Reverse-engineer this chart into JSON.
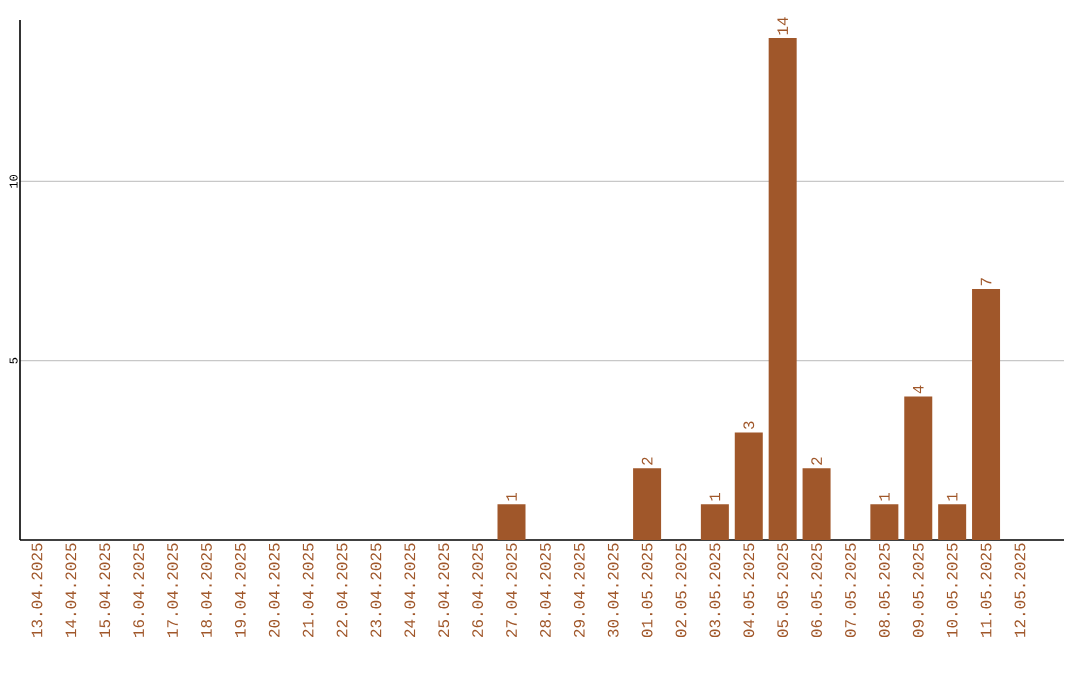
{
  "chart_data": {
    "type": "bar",
    "categories": [
      "13.04.2025",
      "14.04.2025",
      "15.04.2025",
      "16.04.2025",
      "17.04.2025",
      "18.04.2025",
      "19.04.2025",
      "20.04.2025",
      "21.04.2025",
      "22.04.2025",
      "23.04.2025",
      "24.04.2025",
      "25.04.2025",
      "26.04.2025",
      "27.04.2025",
      "28.04.2025",
      "29.04.2025",
      "30.04.2025",
      "01.05.2025",
      "02.05.2025",
      "03.05.2025",
      "04.05.2025",
      "05.05.2025",
      "06.05.2025",
      "07.05.2025",
      "08.05.2025",
      "09.05.2025",
      "10.05.2025",
      "11.05.2025",
      "12.05.2025"
    ],
    "values": [
      0,
      0,
      0,
      0,
      0,
      0,
      0,
      0,
      0,
      0,
      0,
      0,
      0,
      0,
      1,
      0,
      0,
      0,
      2,
      0,
      1,
      3,
      14,
      2,
      0,
      1,
      4,
      1,
      7,
      0
    ],
    "value_labels": [
      null,
      null,
      null,
      null,
      null,
      null,
      null,
      null,
      null,
      null,
      null,
      null,
      null,
      null,
      "1",
      null,
      null,
      null,
      "2",
      null,
      "1",
      "3",
      "14",
      "2",
      null,
      "1",
      "4",
      "1",
      "7",
      null
    ],
    "color": "#a0572a",
    "ylim": [
      0,
      14.5
    ],
    "yticks": [
      5,
      10
    ],
    "grid": "y"
  }
}
